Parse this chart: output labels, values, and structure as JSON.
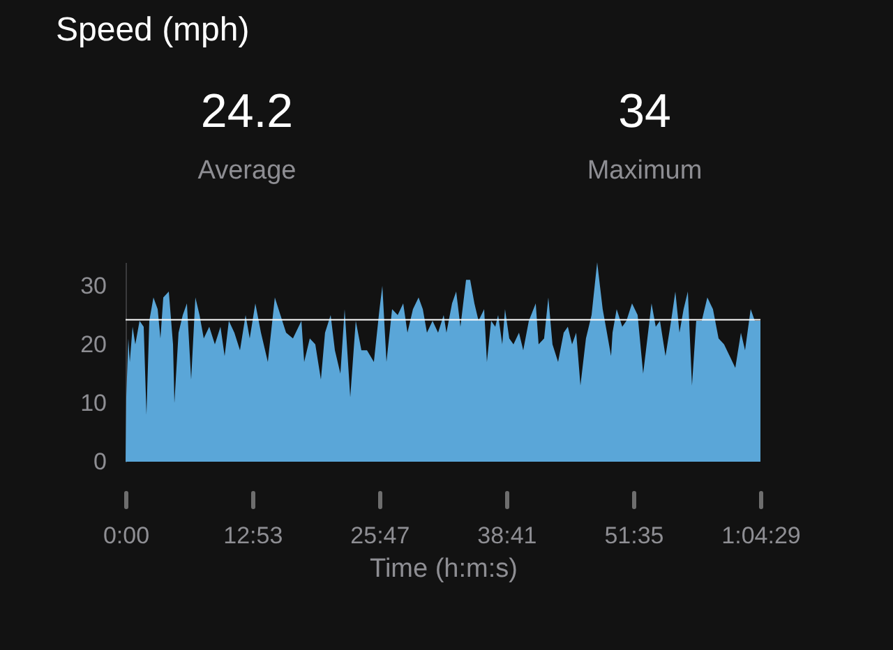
{
  "chart_data": {
    "type": "area",
    "title": "Speed (mph)",
    "xlabel": "Time (h:m:s)",
    "annotations": [
      "24.2",
      "Average",
      "34",
      "Maximum"
    ],
    "x": [
      0,
      0.07,
      0.28,
      0.43,
      0.71,
      0.99,
      1.42,
      1.84,
      2.12,
      2.41,
      2.83,
      3.26,
      3.54,
      3.83,
      4.39,
      4.82,
      4.96,
      5.38,
      5.81,
      6.23,
      6.66,
      7.09,
      7.51,
      7.94,
      8.5,
      9.07,
      9.64,
      10.06,
      10.49,
      11.05,
      11.62,
      12.19,
      12.61,
      13.18,
      13.75,
      14.45,
      15.16,
      15.73,
      16.3,
      17.0,
      17.86,
      18.14,
      18.71,
      19.27,
      19.84,
      20.26,
      20.83,
      21.26,
      21.82,
      22.25,
      22.82,
      23.38,
      23.95,
      24.52,
      25.22,
      25.79,
      26.08,
      26.5,
      27.07,
      27.64,
      28.2,
      28.63,
      29.19,
      29.76,
      30.19,
      30.61,
      31.18,
      31.74,
      32.31,
      32.59,
      33.16,
      33.58,
      34.01,
      34.58,
      35.0,
      35.43,
      35.85,
      36.42,
      36.7,
      37.13,
      37.55,
      37.84,
      38.26,
      38.54,
      38.97,
      39.4,
      39.96,
      40.39,
      40.96,
      41.66,
      41.95,
      42.51,
      42.94,
      43.36,
      43.93,
      44.5,
      44.92,
      45.35,
      45.77,
      46.2,
      46.76,
      47.33,
      47.9,
      48.46,
      48.89,
      49.31,
      49.46,
      49.88,
      50.45,
      50.87,
      51.44,
      52.01,
      52.57,
      53.0,
      53.42,
      53.85,
      54.28,
      54.84,
      55.41,
      55.84,
      56.26,
      56.68,
      57.11,
      57.53,
      57.96,
      58.52,
      59.09,
      59.66,
      60.23,
      60.79,
      61.36,
      61.93,
      62.5,
      62.92,
      63.49,
      63.91,
      64.4833
    ],
    "series": [
      {
        "color": "#5aa6d8",
        "values": [
          0,
          11,
          21,
          17,
          23,
          20,
          24,
          23,
          8,
          24,
          28,
          26,
          21,
          28,
          29,
          20,
          10,
          22,
          25,
          27,
          14,
          28,
          25,
          21,
          23,
          20,
          23,
          18,
          24,
          22,
          19,
          25,
          21,
          27,
          22,
          17,
          28,
          25,
          22,
          21,
          24,
          17,
          21,
          20,
          14,
          22,
          25,
          19,
          15,
          26,
          11,
          24,
          19,
          19,
          17,
          26,
          30,
          17,
          26,
          25,
          27,
          22,
          26,
          28,
          26,
          22,
          24,
          22,
          25,
          22,
          27,
          29,
          23,
          31,
          31,
          27,
          24,
          26,
          17,
          24,
          23,
          25,
          20,
          26,
          21,
          20,
          22,
          19,
          24,
          27,
          20,
          21,
          28,
          20,
          17,
          22,
          23,
          20,
          22,
          13,
          21,
          25,
          34,
          26,
          22,
          18,
          22,
          26,
          23,
          24,
          27,
          25,
          15,
          21,
          27,
          23,
          24,
          18,
          24,
          29,
          22,
          26,
          29,
          13,
          24,
          24,
          28,
          26,
          21,
          20,
          18,
          16,
          22,
          19,
          26,
          24,
          24
        ]
      }
    ],
    "xlim": [
      0,
      64.4833
    ],
    "xticks": [
      {
        "value": 0,
        "label": "0:00"
      },
      {
        "value": 12.8833,
        "label": "12:53"
      },
      {
        "value": 25.7833,
        "label": "25:47"
      },
      {
        "value": 38.6833,
        "label": "38:41"
      },
      {
        "value": 51.5833,
        "label": "51:35"
      },
      {
        "value": 64.4833,
        "label": "1:04:29"
      }
    ],
    "ylim": [
      0,
      34
    ],
    "yticks": [
      0,
      10,
      20,
      30
    ],
    "ref_lines": [
      {
        "axis": "y",
        "value": 24.2,
        "color": "#ffffff"
      }
    ],
    "grid": false
  }
}
